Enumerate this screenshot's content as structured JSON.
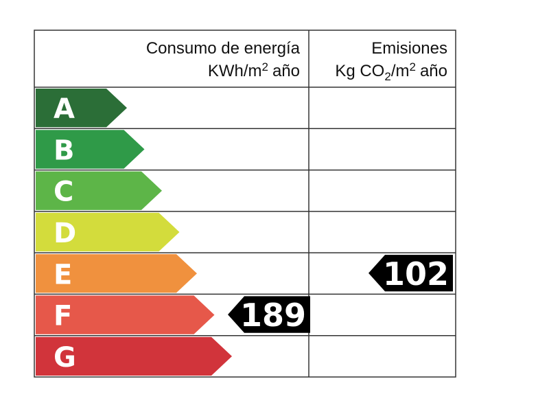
{
  "header": {
    "consumption": {
      "title": "Consumo de energía",
      "unit": [
        "KWh/m",
        "2",
        "año"
      ]
    },
    "emissions": {
      "title": "Emisiones",
      "unit": [
        "Kg CO",
        "2",
        "/m",
        "2",
        "año"
      ]
    }
  },
  "grades": [
    {
      "letter": "A",
      "color": "#2b6e37"
    },
    {
      "letter": "B",
      "color": "#2f9a48"
    },
    {
      "letter": "C",
      "color": "#5db548"
    },
    {
      "letter": "D",
      "color": "#d3dc3c"
    },
    {
      "letter": "E",
      "color": "#f0913e"
    },
    {
      "letter": "F",
      "color": "#e6584a"
    },
    {
      "letter": "G",
      "color": "#d1343b"
    }
  ],
  "consumption": {
    "grade": "F",
    "value": 189
  },
  "emissions": {
    "grade": "E",
    "value": 102
  }
}
